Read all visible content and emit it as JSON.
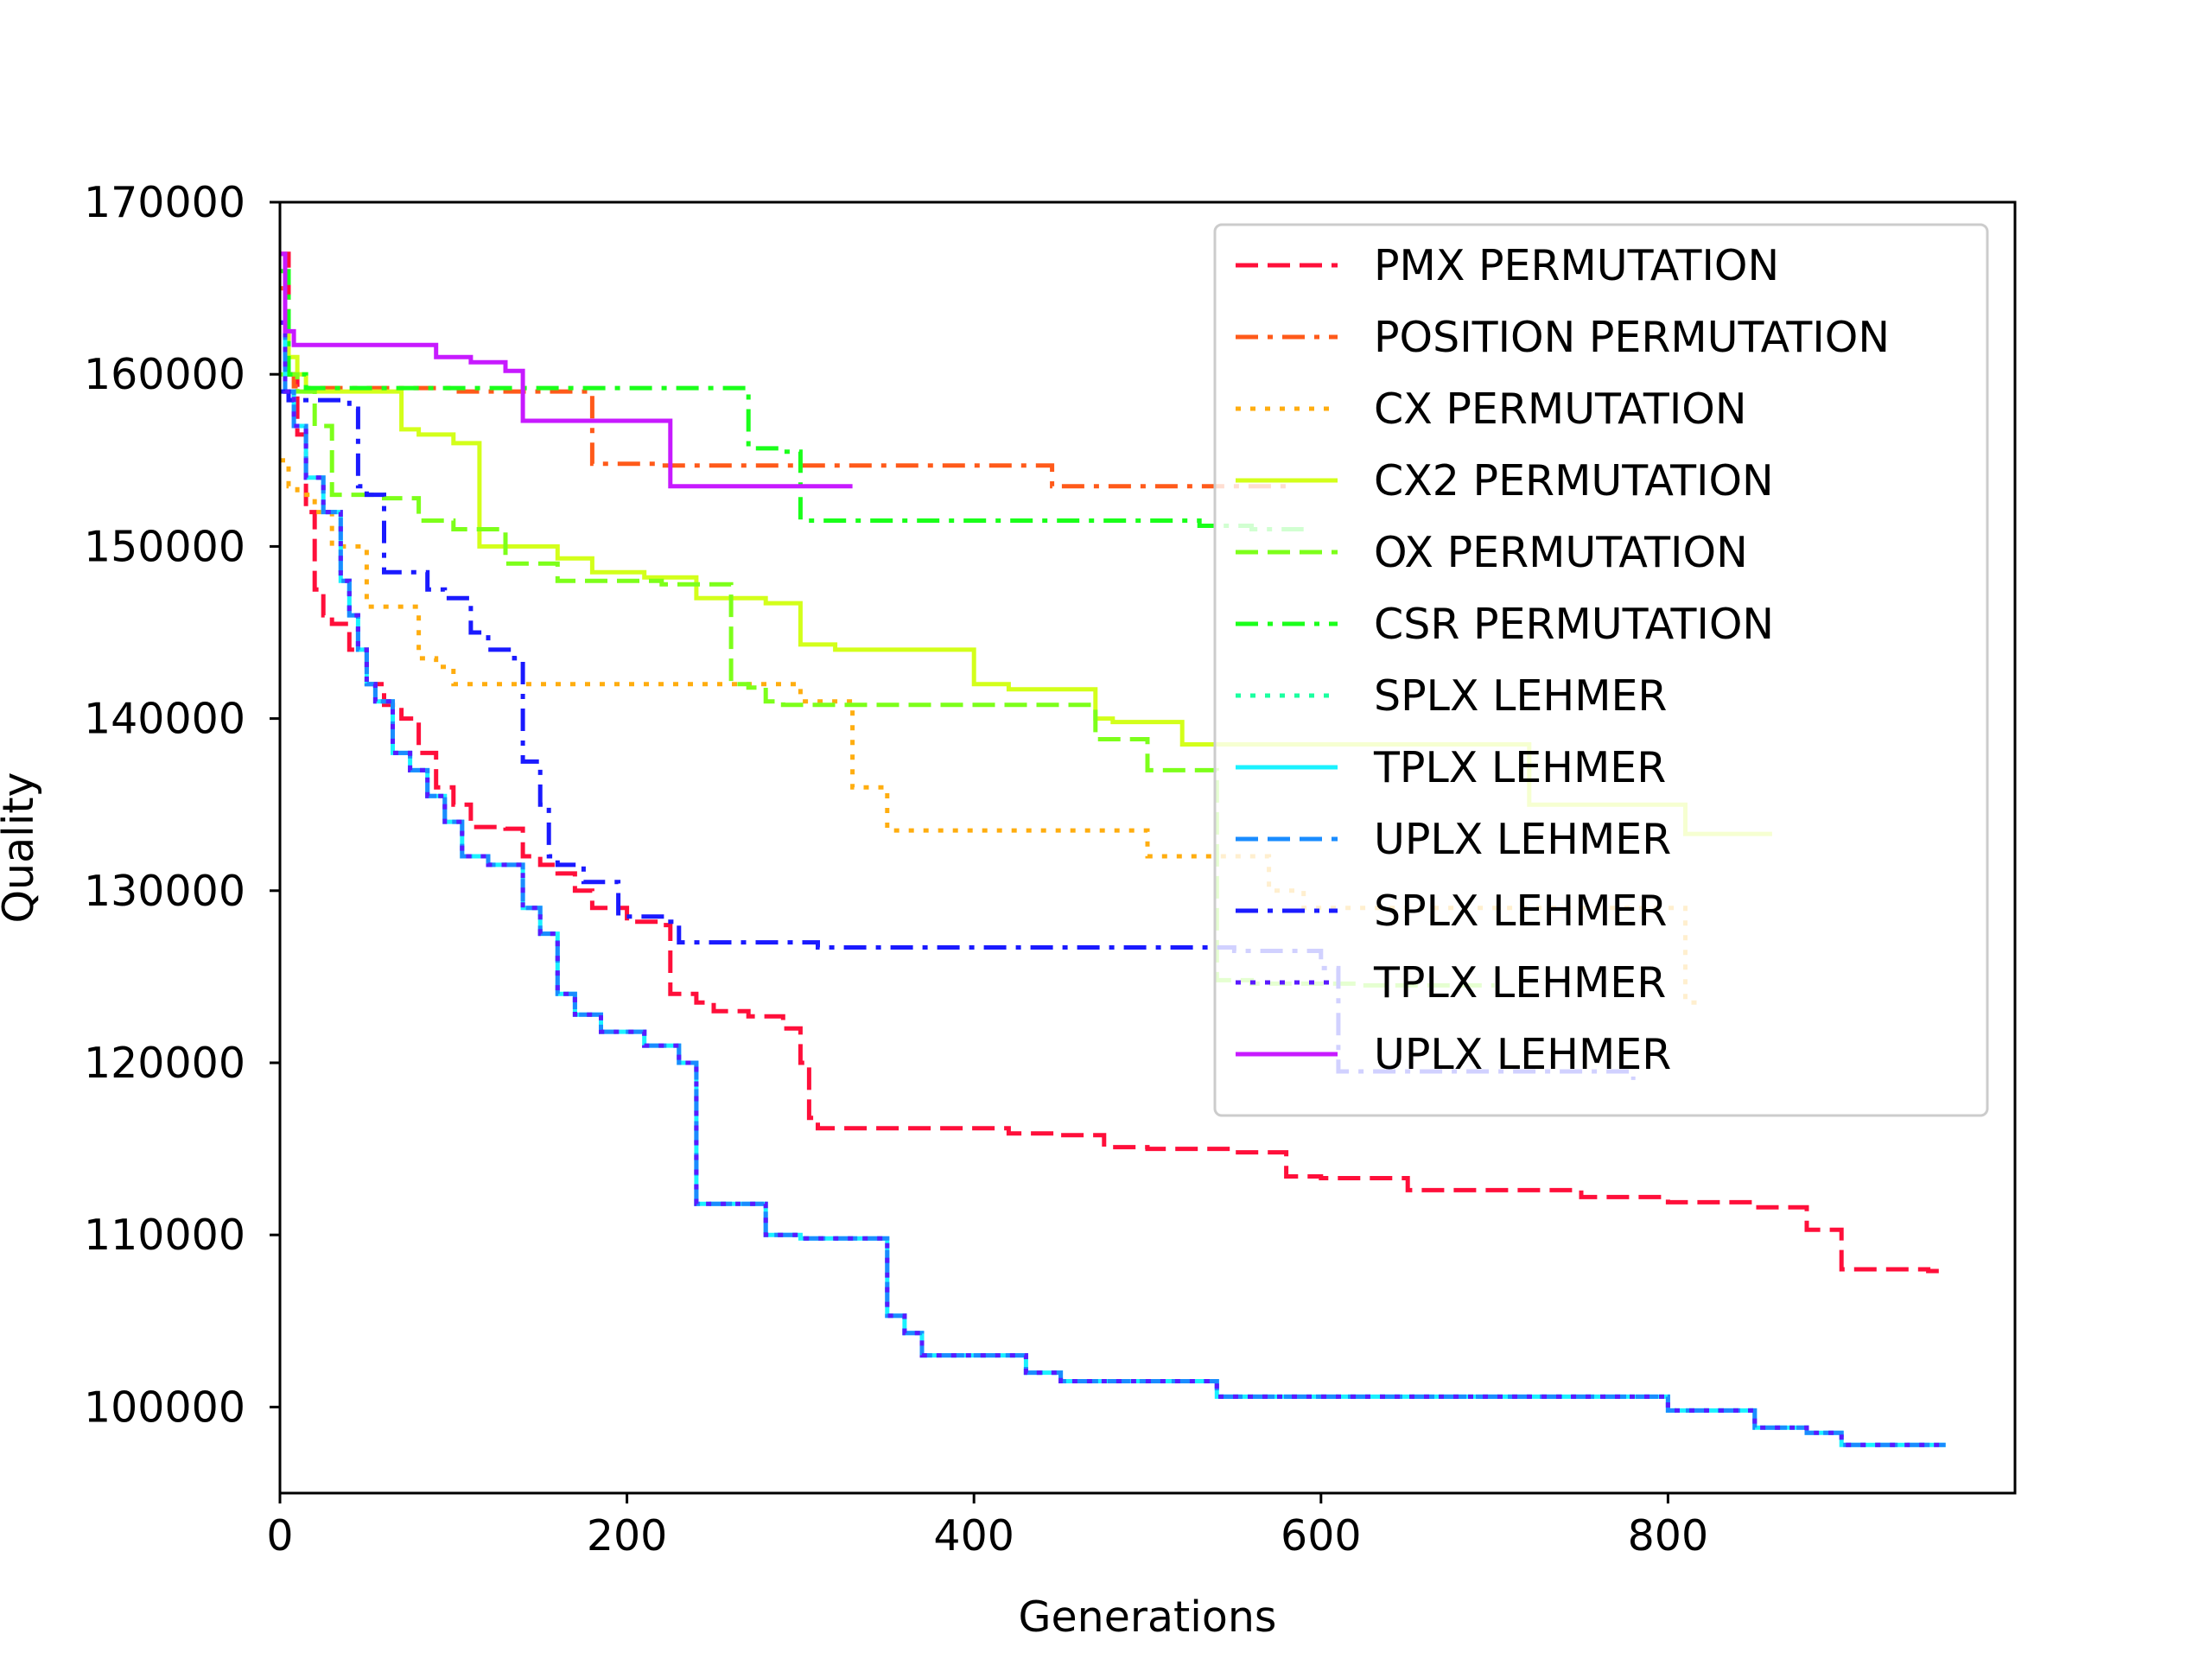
{
  "chart_data": {
    "type": "line",
    "step": true,
    "xlabel": "Generations",
    "ylabel": "Quality",
    "xlim": [
      0,
      1000
    ],
    "ylim": [
      95000,
      170000
    ],
    "xticks": [
      0,
      200,
      400,
      600,
      800
    ],
    "yticks": [
      100000,
      110000,
      120000,
      130000,
      140000,
      150000,
      160000,
      170000
    ],
    "grid": false,
    "legend_position": "top-right",
    "series": [
      {
        "name": "PMX PERMUTATION",
        "color": "#ff0f3a",
        "dash": "dashed",
        "x": [
          0,
          5,
          10,
          15,
          20,
          25,
          30,
          40,
          50,
          60,
          70,
          80,
          90,
          100,
          110,
          130,
          140,
          150,
          160,
          170,
          180,
          200,
          220,
          225,
          240,
          250,
          270,
          290,
          300,
          305,
          310,
          350,
          420,
          450,
          475,
          500,
          550,
          580,
          600,
          650,
          700,
          750,
          800,
          850,
          880,
          900,
          950,
          960
        ],
        "y": [
          167000,
          160000,
          156500,
          152000,
          147500,
          146000,
          145500,
          144000,
          142000,
          140800,
          140000,
          138000,
          136000,
          135000,
          133700,
          133600,
          132000,
          131500,
          131000,
          130000,
          129000,
          128200,
          128000,
          124000,
          123500,
          123000,
          122700,
          122000,
          120000,
          116800,
          116200,
          116200,
          115900,
          115800,
          115100,
          115000,
          114800,
          113400,
          113300,
          112600,
          112600,
          112200,
          111900,
          111600,
          110300,
          108000,
          107900,
          107900
        ]
      },
      {
        "name": "POSITION PERMUTATION",
        "color": "#ff5a1a",
        "dash": "dashdot",
        "x": [
          0,
          3,
          8,
          15,
          100,
          180,
          220,
          445,
          480,
          580
        ],
        "y": [
          165000,
          160000,
          159300,
          159200,
          159000,
          154800,
          154700,
          153500,
          153500,
          153500
        ]
      },
      {
        "name": "CX PERMUTATION",
        "color": "#ffad0f",
        "dash": "dotted",
        "x": [
          0,
          5,
          10,
          20,
          30,
          50,
          80,
          90,
          100,
          280,
          300,
          330,
          350,
          470,
          500,
          560,
          570,
          590,
          800,
          810,
          820
        ],
        "y": [
          155000,
          153500,
          153000,
          152000,
          150000,
          146500,
          143500,
          143000,
          142000,
          142000,
          141000,
          136000,
          133500,
          133500,
          132000,
          132000,
          130000,
          129000,
          129000,
          123500,
          123500
        ]
      },
      {
        "name": "CX2 PERMUTATION",
        "color": "#d3ff1a",
        "dash": "solid",
        "x": [
          0,
          5,
          10,
          15,
          50,
          70,
          80,
          100,
          115,
          140,
          160,
          180,
          210,
          240,
          280,
          300,
          320,
          350,
          400,
          420,
          430,
          470,
          480,
          520,
          540,
          700,
          720,
          800,
          810,
          860
        ],
        "y": [
          163000,
          161000,
          160000,
          159000,
          159000,
          156800,
          156500,
          156000,
          150000,
          150000,
          149300,
          148500,
          148200,
          147000,
          146700,
          144300,
          144000,
          144000,
          142000,
          141700,
          141700,
          140000,
          139800,
          138500,
          138500,
          138500,
          135000,
          135000,
          133300,
          133300
        ]
      },
      {
        "name": "OX PERMUTATION",
        "color": "#7dff1a",
        "dash": "dashed",
        "x": [
          0,
          10,
          20,
          30,
          60,
          80,
          100,
          130,
          160,
          220,
          260,
          270,
          280,
          290,
          470,
          500,
          535,
          540,
          560,
          620,
          640,
          680,
          700
        ],
        "y": [
          160000,
          159000,
          157000,
          153000,
          152800,
          151500,
          151000,
          149000,
          148000,
          147800,
          142000,
          141800,
          141000,
          140800,
          138800,
          137000,
          137000,
          124800,
          124600,
          124500,
          124500,
          124500,
          124500
        ]
      },
      {
        "name": "CSR PERMUTATION",
        "color": "#1aff1a",
        "dash": "dashdot",
        "x": [
          0,
          5,
          15,
          100,
          260,
          270,
          290,
          300,
          400,
          500,
          530,
          540,
          560,
          580,
          590
        ],
        "y": [
          166000,
          160000,
          159200,
          159200,
          159200,
          155700,
          155500,
          151500,
          151500,
          151500,
          151200,
          151200,
          151000,
          151000,
          151000
        ]
      },
      {
        "name": "SPLX LEHMER",
        "color": "#1affa0",
        "dash": "dotted",
        "x": [
          0,
          3,
          8,
          15,
          25,
          35,
          40,
          45,
          50,
          55,
          65,
          75,
          85,
          95,
          105,
          120,
          140,
          150,
          160,
          170,
          185,
          210,
          230,
          240,
          250,
          280,
          300,
          350,
          360,
          370,
          380,
          430,
          450,
          520,
          540,
          700,
          800,
          850,
          880,
          900,
          960
        ],
        "y": [
          163000,
          159000,
          157000,
          154000,
          152000,
          148000,
          146000,
          144000,
          142000,
          141000,
          138000,
          137000,
          135500,
          134000,
          132000,
          131500,
          129000,
          127500,
          124000,
          122800,
          121800,
          121000,
          120000,
          111800,
          111800,
          110000,
          109800,
          105300,
          104300,
          103000,
          103000,
          102000,
          101500,
          101500,
          100600,
          100600,
          99800,
          98800,
          98500,
          97800,
          97800
        ]
      },
      {
        "name": "TPLX LEHMER",
        "color": "#1af2ff",
        "dash": "solid",
        "x": [
          0,
          3,
          8,
          15,
          25,
          35,
          40,
          45,
          50,
          55,
          65,
          75,
          85,
          95,
          105,
          120,
          140,
          150,
          160,
          170,
          185,
          210,
          230,
          240,
          250,
          280,
          300,
          350,
          360,
          370,
          380,
          430,
          450,
          520,
          540,
          700,
          800,
          850,
          880,
          900,
          960
        ],
        "y": [
          163000,
          159000,
          157000,
          154000,
          152000,
          148000,
          146000,
          144000,
          142000,
          141000,
          138000,
          137000,
          135500,
          134000,
          132000,
          131500,
          129000,
          127500,
          124000,
          122800,
          121800,
          121000,
          120000,
          111800,
          111800,
          110000,
          109800,
          105300,
          104300,
          103000,
          103000,
          102000,
          101500,
          101500,
          100600,
          100600,
          99800,
          98800,
          98500,
          97800,
          97800
        ]
      },
      {
        "name": "UPLX LEHMER",
        "color": "#1a8cff",
        "dash": "dashed",
        "x": [
          0,
          3,
          8,
          15,
          25,
          35,
          40,
          45,
          50,
          55,
          65,
          75,
          85,
          95,
          105,
          120,
          140,
          150,
          160,
          170,
          185,
          210,
          230,
          240,
          250,
          280,
          300,
          350,
          360,
          370,
          380,
          430,
          450,
          520,
          540,
          700,
          800,
          850,
          880,
          900,
          960
        ],
        "y": [
          163000,
          159000,
          157000,
          154000,
          152000,
          148000,
          146000,
          144000,
          142000,
          141000,
          138000,
          137000,
          135500,
          134000,
          132000,
          131500,
          129000,
          127500,
          124000,
          122800,
          121800,
          121000,
          120000,
          111800,
          111800,
          110000,
          109800,
          105300,
          104300,
          103000,
          103000,
          102000,
          101500,
          101500,
          100600,
          100600,
          99800,
          98800,
          98500,
          97800,
          97800
        ]
      },
      {
        "name": "SPLX LEHMER",
        "color": "#1a1aff",
        "dash": "dashdot",
        "x": [
          0,
          5,
          40,
          45,
          50,
          60,
          85,
          95,
          110,
          120,
          135,
          140,
          150,
          155,
          160,
          175,
          195,
          225,
          230,
          300,
          310,
          540,
          550,
          600,
          610,
          640,
          780
        ],
        "y": [
          159000,
          158500,
          158000,
          153500,
          153000,
          148500,
          147500,
          147000,
          145000,
          144000,
          143500,
          137500,
          135000,
          132000,
          131500,
          130500,
          128500,
          128200,
          127000,
          127000,
          126700,
          126700,
          126500,
          125500,
          119500,
          119500,
          119000
        ]
      },
      {
        "name": "TPLX LEHMER",
        "color": "#5a1aff",
        "dash": "dotted",
        "x": [
          0,
          3,
          8,
          15,
          25,
          35,
          40,
          45,
          50,
          55,
          65,
          75,
          85,
          95,
          105,
          120,
          140,
          150,
          160,
          170,
          185,
          210,
          230,
          240,
          250,
          280,
          300,
          350,
          360,
          370,
          380,
          430,
          450,
          520,
          540,
          700,
          800,
          850,
          880,
          900,
          960
        ],
        "y": [
          163000,
          159000,
          157000,
          154000,
          152000,
          148000,
          146000,
          144000,
          142000,
          141000,
          138000,
          137000,
          135500,
          134000,
          132000,
          131500,
          129000,
          127500,
          124000,
          122800,
          121800,
          121000,
          120000,
          111800,
          111800,
          110000,
          109800,
          105300,
          104300,
          103000,
          103000,
          102000,
          101500,
          101500,
          100600,
          100600,
          99800,
          98800,
          98500,
          97800,
          97800
        ]
      },
      {
        "name": "UPLX LEHMER",
        "color": "#c71aff",
        "dash": "solid",
        "x": [
          0,
          3,
          8,
          80,
          90,
          110,
          130,
          140,
          145,
          225,
          230,
          330
        ],
        "y": [
          167000,
          162500,
          161700,
          161700,
          161000,
          160700,
          160200,
          157300,
          157300,
          153500,
          153500,
          153500
        ]
      }
    ]
  }
}
